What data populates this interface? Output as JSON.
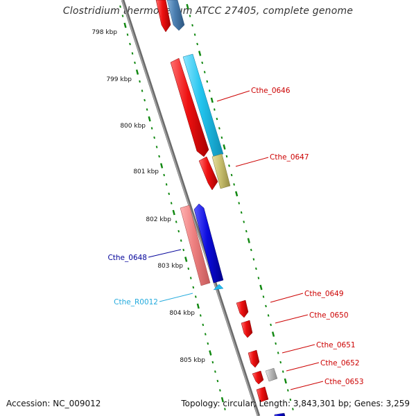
{
  "title": "Clostridium thermocellum ATCC 27405, complete genome",
  "footer": {
    "accession": "Accession: NC_009012",
    "stats": "Topology: circular; Length: 3,843,301 bp; Genes: 3,259"
  },
  "colors": {
    "backbone": "#8c8c8c",
    "ticks": "#118811",
    "forward_cds": "#ee1111",
    "reverse_cds": "#ee1111",
    "cog_cyan": "#22c4ee",
    "cog_khaki": "#c8bf6e",
    "cog_pink": "#ee8080",
    "cog_blue": "#0b0bdd",
    "cog_steel": "#4a7eb0",
    "rna": "#22bbee",
    "gray_feature": "#b8b8b8",
    "label_red": "#cc0000",
    "label_navy": "#000099",
    "label_cyan": "#22aadd"
  },
  "scale_labels": [
    {
      "text": "798 kbp",
      "kbp": 798
    },
    {
      "text": "799 kbp",
      "kbp": 799
    },
    {
      "text": "800 kbp",
      "kbp": 800
    },
    {
      "text": "801 kbp",
      "kbp": 801
    },
    {
      "text": "802 kbp",
      "kbp": 802
    },
    {
      "text": "803 kbp",
      "kbp": 803
    },
    {
      "text": "804 kbp",
      "kbp": 804
    },
    {
      "text": "805 kbp",
      "kbp": 805
    }
  ],
  "gene_labels": [
    {
      "text": "Cthe_0646",
      "color": "label_red"
    },
    {
      "text": "Cthe_0647",
      "color": "label_red"
    },
    {
      "text": "Cthe_0648",
      "color": "label_navy"
    },
    {
      "text": "Cthe_R0012",
      "color": "label_cyan"
    },
    {
      "text": "Cthe_0649",
      "color": "label_red"
    },
    {
      "text": "Cthe_0650",
      "color": "label_red"
    },
    {
      "text": "Cthe_0651",
      "color": "label_red"
    },
    {
      "text": "Cthe_0652",
      "color": "label_red"
    },
    {
      "text": "Cthe_0653",
      "color": "label_red"
    }
  ]
}
